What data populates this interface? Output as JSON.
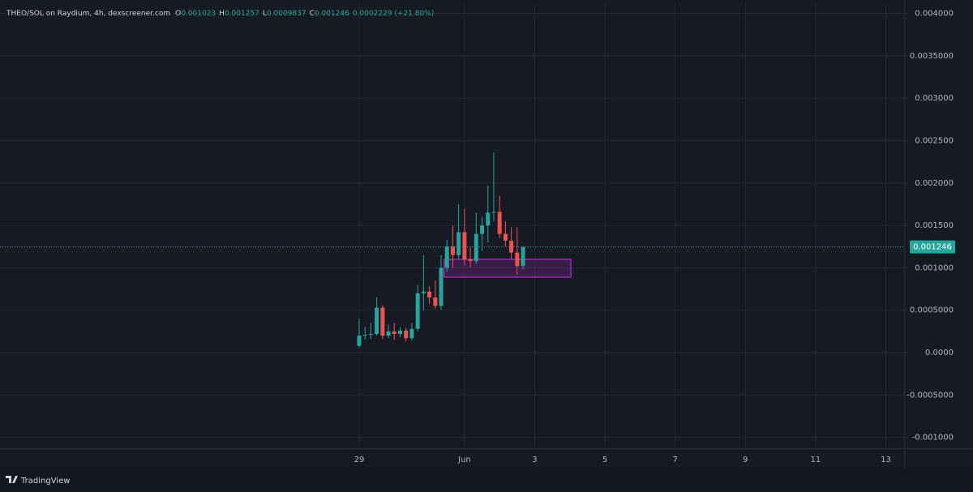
{
  "chart_data": {
    "type": "candlestick",
    "title": "THEO/SOL on Raydium, 4h, dexscreener.com",
    "ohlc_labels": [
      "O",
      "H",
      "L",
      "C"
    ],
    "change": "0.0002229 (+21.80%)",
    "footer": "TradingView",
    "up_color": "#26a69a",
    "down_color": "#ef5350",
    "grid": true,
    "x": [
      0,
      0.167,
      0.333,
      0.5,
      0.667,
      0.833,
      1,
      1.167,
      1.333,
      1.5,
      1.667,
      1.833,
      2,
      2.167,
      2.333,
      2.5,
      2.667,
      2.833,
      3,
      3.167,
      3.333,
      3.5,
      3.667,
      3.833,
      4,
      4.167,
      4.333,
      4.5,
      4.667
    ],
    "open": [
      8e-05,
      0.0002,
      0.00021,
      0.00022,
      0.00053,
      0.0002,
      0.00025,
      0.00022,
      0.00026,
      0.00017,
      0.00028,
      0.0007,
      0.00072,
      0.00065,
      0.00055,
      0.001,
      0.00125,
      0.00115,
      0.00142,
      0.0011,
      0.00108,
      0.0014,
      0.0015,
      0.00165,
      0.00166,
      0.0014,
      0.00132,
      0.00118,
      0.001023
    ],
    "high": [
      0.0004,
      0.0003,
      0.00035,
      0.00065,
      0.00056,
      0.00033,
      0.00035,
      0.0003,
      0.00029,
      0.00035,
      0.0008,
      0.00115,
      0.00078,
      0.00085,
      0.00115,
      0.00133,
      0.0015,
      0.00175,
      0.0017,
      0.00125,
      0.00165,
      0.0016,
      0.00197,
      0.00236,
      0.00185,
      0.00155,
      0.00148,
      0.00148,
      0.001257
    ],
    "low": [
      6e-05,
      0.00015,
      0.00016,
      0.0002,
      0.00016,
      0.00017,
      0.00015,
      0.00018,
      0.00013,
      0.00014,
      0.00025,
      0.0005,
      0.00058,
      0.00052,
      0.0005,
      0.00095,
      0.001,
      0.0011,
      0.00103,
      0.001,
      0.00105,
      0.0012,
      0.0013,
      0.00155,
      0.00135,
      0.00125,
      0.0011,
      0.00092,
      0.0009837
    ],
    "close": [
      0.0002,
      0.00021,
      0.00022,
      0.00053,
      0.0002,
      0.00025,
      0.00022,
      0.00026,
      0.00017,
      0.00028,
      0.0007,
      0.00072,
      0.00065,
      0.00055,
      0.001,
      0.00125,
      0.00115,
      0.00142,
      0.0011,
      0.00108,
      0.0014,
      0.0015,
      0.00165,
      0.00166,
      0.0014,
      0.00132,
      0.00118,
      0.00102,
      0.001246
    ],
    "zone": {
      "x": [
        2.42,
        6.03
      ],
      "y": [
        0.00089,
        0.0011
      ],
      "color": "#9c27b0"
    },
    "xlim": [
      -10.23,
      15.52
    ],
    "xticks": [
      {
        "value": 0,
        "label": "29"
      },
      {
        "value": 3,
        "label": "Jun"
      },
      {
        "value": 5,
        "label": "3"
      },
      {
        "value": 7,
        "label": "5"
      },
      {
        "value": 9,
        "label": "7"
      },
      {
        "value": 11,
        "label": "9"
      },
      {
        "value": 13,
        "label": "11"
      },
      {
        "value": 15,
        "label": "13"
      }
    ],
    "ylim": [
      -0.001128,
      0.004111
    ],
    "yticks": [
      {
        "value": 0.004,
        "label": "0.004000"
      },
      {
        "value": 0.0035,
        "label": "0.0035000"
      },
      {
        "value": 0.003,
        "label": "0.003000"
      },
      {
        "value": 0.0025,
        "label": "0.002500"
      },
      {
        "value": 0.002,
        "label": "0.002000"
      },
      {
        "value": 0.0015,
        "label": "0.001500"
      },
      {
        "value": 0.001,
        "label": "0.001000"
      },
      {
        "value": 0.0005,
        "label": "0.0005000"
      },
      {
        "value": 0,
        "label": "0.0000"
      },
      {
        "value": -0.0005,
        "label": "-0.0005000"
      },
      {
        "value": -0.001,
        "label": "-0.001000"
      }
    ]
  }
}
